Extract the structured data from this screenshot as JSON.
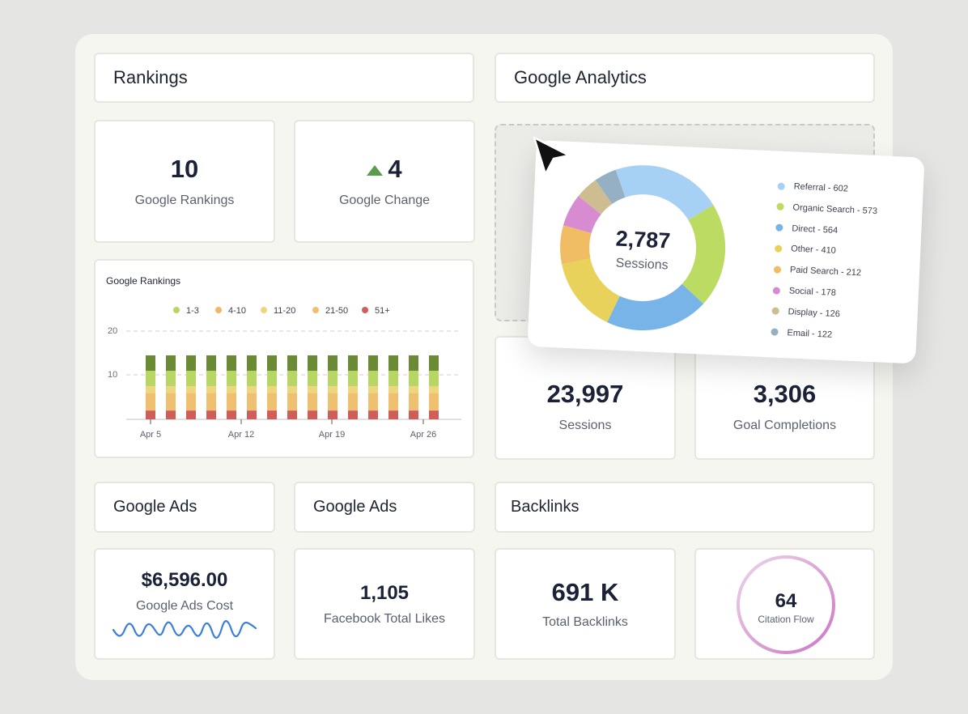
{
  "rankings": {
    "header": "Rankings",
    "google_rankings_value": "10",
    "google_rankings_label": "Google Rankings",
    "google_change_value": "4",
    "google_change_label": "Google Change"
  },
  "analytics": {
    "header": "Google Analytics",
    "sessions_value": "23,997",
    "sessions_label": "Sessions",
    "goals_value": "3,306",
    "goals_label": "Goal Completions"
  },
  "donut": {
    "center_value": "2,787",
    "center_label": "Sessions",
    "legend": [
      {
        "label": "Referral - 602",
        "color": "#a6d1f5"
      },
      {
        "label": "Organic Search - 573",
        "color": "#bcdb63"
      },
      {
        "label": "Direct - 564",
        "color": "#79b4e8"
      },
      {
        "label": "Other - 410",
        "color": "#e9d25b"
      },
      {
        "label": "Paid Search - 212",
        "color": "#f0bd64"
      },
      {
        "label": "Social - 178",
        "color": "#d78bd1"
      },
      {
        "label": "Display - 126",
        "color": "#cdbd91"
      },
      {
        "label": "Email - 122",
        "color": "#94b0c2"
      }
    ]
  },
  "ranking_chart": {
    "title": "Google Rankings",
    "legend": [
      {
        "label": "1-3",
        "color": "#b7d664"
      },
      {
        "label": "4-10",
        "color": "#efb76b"
      },
      {
        "label": "11-20",
        "color": "#eed67f"
      },
      {
        "label": "21-50",
        "color": "#efc06f"
      },
      {
        "label": "51+",
        "color": "#cf5e5a"
      }
    ],
    "y_ticks": [
      "20",
      "10"
    ],
    "x_ticks": [
      "Apr 5",
      "Apr 12",
      "Apr 19",
      "Apr 26"
    ]
  },
  "ads": {
    "header1": "Google Ads",
    "header2": "Google Ads",
    "cost_value": "$6,596.00",
    "cost_label": "Google Ads Cost",
    "likes_value": "1,105",
    "likes_label": "Facebook Total Likes"
  },
  "backlinks": {
    "header": "Backlinks",
    "total_value": "691 K",
    "total_label": "Total Backlinks",
    "citation_value": "64",
    "citation_label": "Citation Flow"
  },
  "chart_data": {
    "type": "bar",
    "title": "Google Rankings",
    "categories": [
      "1",
      "2",
      "3",
      "4",
      "5",
      "6",
      "7",
      "8",
      "9",
      "10",
      "11",
      "12",
      "13",
      "14",
      "15"
    ],
    "x_tick_labels": [
      "Apr 5",
      "Apr 12",
      "Apr 19",
      "Apr 26"
    ],
    "ylim": [
      0,
      20
    ],
    "y_ticks": [
      10,
      20
    ],
    "stacked": true,
    "series": [
      {
        "name": "51+",
        "color": "#cf5e5a",
        "values": [
          2,
          2,
          2,
          2,
          2,
          2,
          2,
          2,
          2,
          2,
          2,
          2,
          2,
          2,
          2
        ]
      },
      {
        "name": "21-50",
        "color": "#efc06f",
        "values": [
          4,
          4,
          4,
          4,
          4,
          4,
          4,
          4,
          4,
          4,
          4,
          4,
          4,
          4,
          4
        ]
      },
      {
        "name": "11-20",
        "color": "#eed67f",
        "values": [
          1.5,
          1.5,
          1.5,
          1.5,
          1.5,
          1.5,
          1.5,
          1.5,
          1.5,
          1.5,
          1.5,
          1.5,
          1.5,
          1.5,
          1.5
        ]
      },
      {
        "name": "4-10",
        "color": "#b7d664",
        "values": [
          3.5,
          3.5,
          3.5,
          3.5,
          3.5,
          3.5,
          3.5,
          3.5,
          3.5,
          3.5,
          3.5,
          3.5,
          3.5,
          3.5,
          3.5
        ]
      },
      {
        "name": "1-3",
        "color": "#6a8b33",
        "values": [
          3.5,
          3.5,
          3.5,
          3.5,
          3.5,
          3.5,
          3.5,
          3.5,
          3.5,
          3.5,
          3.5,
          3.5,
          3.5,
          3.5,
          3.5
        ]
      }
    ],
    "grid": "dashed-horizontal",
    "legend_position": "top"
  }
}
